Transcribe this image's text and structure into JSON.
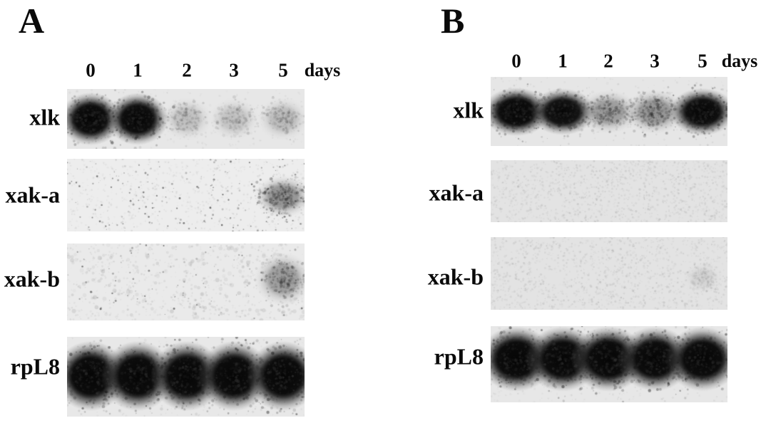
{
  "figure": {
    "panels": [
      {
        "label": "A",
        "unit_label": "days",
        "lane_labels": [
          "0",
          "1",
          "2",
          "3",
          "5"
        ],
        "rows": [
          {
            "label": "xlk",
            "signals": [
              0.95,
              0.92,
              0.3,
              0.28,
              0.34
            ],
            "noise": 0.18
          },
          {
            "label": "xak-a",
            "signals": [
              0,
              0,
              0,
              0,
              0.7
            ],
            "noise": 0.6
          },
          {
            "label": "xak-b",
            "signals": [
              0,
              0,
              0,
              0,
              0.6
            ],
            "noise": 0.45
          },
          {
            "label": "rpL8",
            "signals": [
              1,
              1,
              1,
              1,
              1
            ],
            "noise": 0.25
          }
        ]
      },
      {
        "label": "B",
        "unit_label": "days",
        "lane_labels": [
          "0",
          "1",
          "2",
          "3",
          "5"
        ],
        "rows": [
          {
            "label": "xlk",
            "signals": [
              0.97,
              0.85,
              0.6,
              0.65,
              0.9
            ],
            "noise": 0.2
          },
          {
            "label": "xak-a",
            "signals": [
              0,
              0,
              0,
              0,
              0
            ],
            "noise": 0.5
          },
          {
            "label": "xak-b",
            "signals": [
              0,
              0,
              0,
              0,
              0.12
            ],
            "noise": 0.55
          },
          {
            "label": "rpL8",
            "signals": [
              1,
              0.98,
              1,
              0.96,
              0.96
            ],
            "noise": 0.3
          }
        ]
      }
    ],
    "colors": {
      "ink": "#0a0a0a",
      "film_background": "#e6e6e6",
      "page_background": "#ffffff"
    }
  }
}
